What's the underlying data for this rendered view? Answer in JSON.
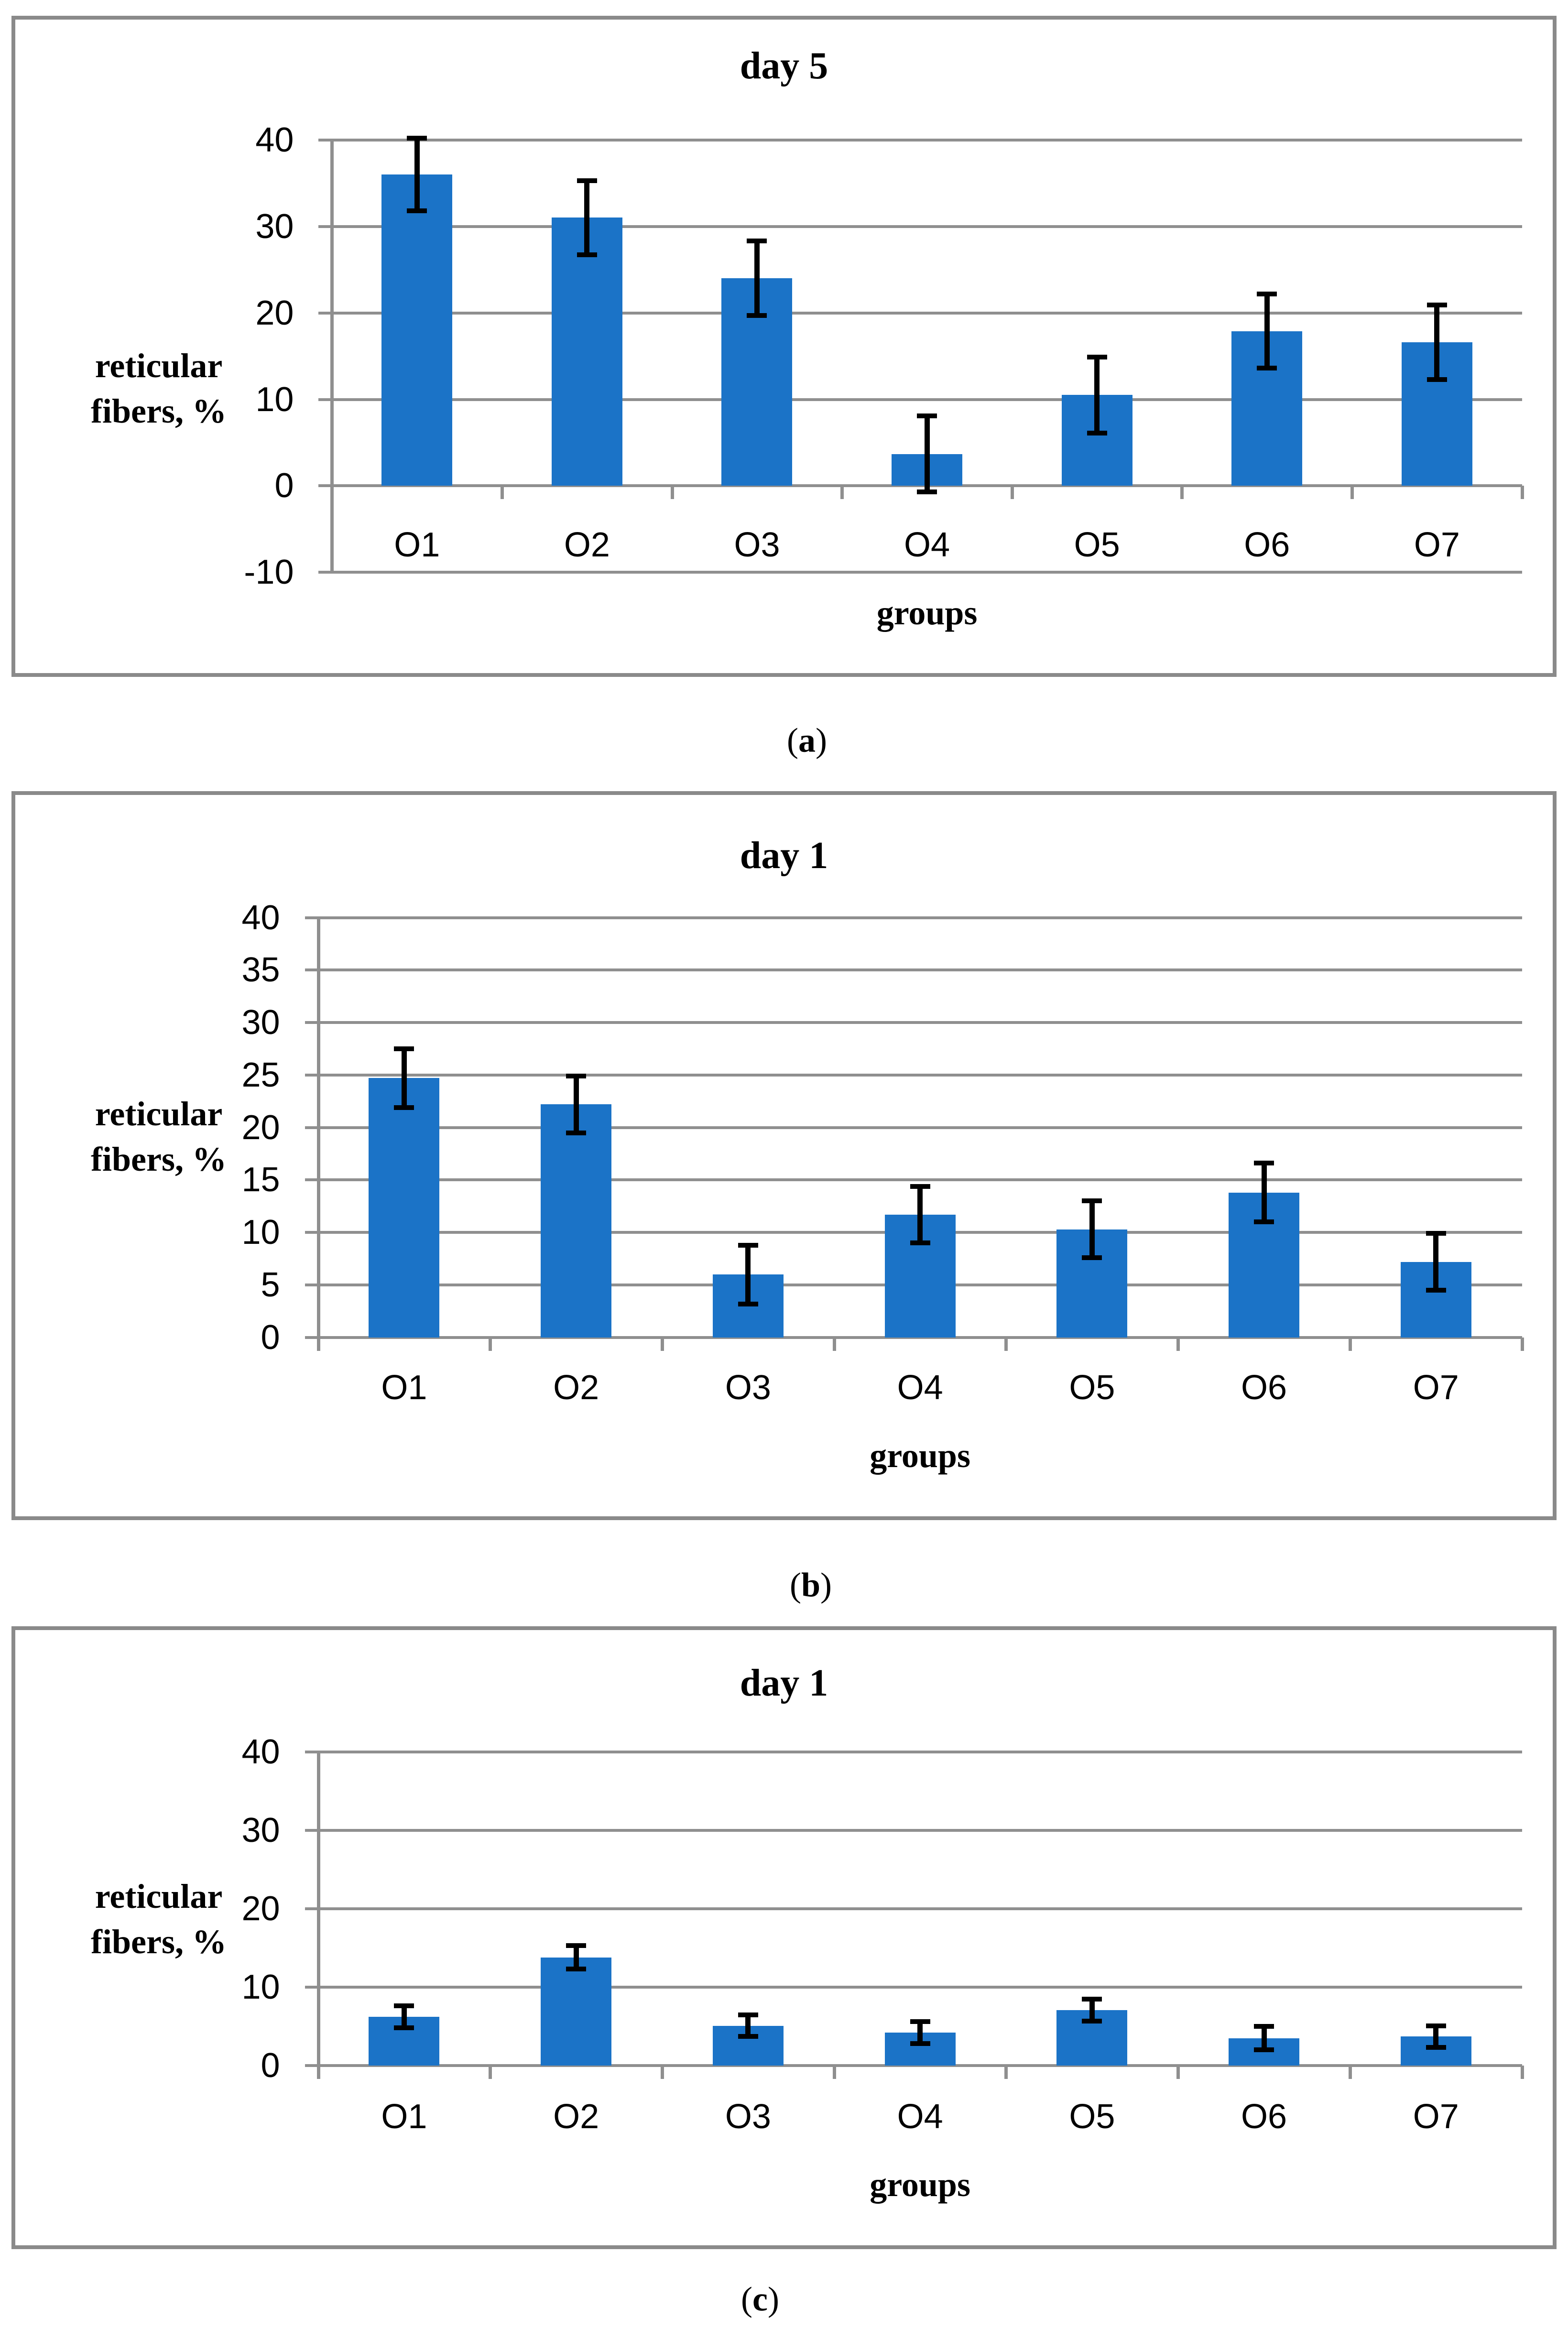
{
  "page": {
    "background": "#FFFFFF"
  },
  "style": {
    "bar_color": "#1B73C7",
    "grid_color": "#8F8F8F",
    "axis_color": "#8F8F8F",
    "panel_border_color": "#8A8A8A",
    "error_bar_color": "#000000",
    "text_color": "#000000"
  },
  "captions": [
    {
      "open": "(",
      "letter": "a",
      "close": ")"
    },
    {
      "open": "(",
      "letter": "b",
      "close": ")"
    },
    {
      "open": "(",
      "letter": "c",
      "close": ")"
    }
  ],
  "chart_data": [
    {
      "type": "bar",
      "panel": "a",
      "title": "day 5",
      "xlabel": "groups",
      "ylabel": "reticular fibers, %",
      "ylabel_lines": [
        "reticular",
        "fibers, %"
      ],
      "categories": [
        "O1",
        "O2",
        "O3",
        "O4",
        "O5",
        "O6",
        "O7"
      ],
      "values": [
        36,
        31,
        24,
        3.7,
        10.5,
        17.9,
        16.6
      ],
      "errors": [
        4.2,
        4.3,
        4.3,
        4.4,
        4.4,
        4.3,
        4.3
      ],
      "ylim": [
        -10,
        40
      ],
      "ytick_step": 10,
      "grid": true,
      "legend": "none"
    },
    {
      "type": "bar",
      "panel": "b",
      "title": "day 1",
      "xlabel": "groups",
      "ylabel": "reticular fibers, %",
      "ylabel_lines": [
        "reticular",
        "fibers, %"
      ],
      "categories": [
        "O1",
        "O2",
        "O3",
        "O4",
        "O5",
        "O6",
        "O7"
      ],
      "values": [
        24.7,
        22.2,
        6.0,
        11.7,
        10.3,
        13.8,
        7.2
      ],
      "errors": [
        2.8,
        2.7,
        2.8,
        2.7,
        2.7,
        2.8,
        2.7
      ],
      "ylim": [
        0,
        40
      ],
      "ytick_step": 5,
      "grid": true,
      "legend": "none"
    },
    {
      "type": "bar",
      "panel": "c",
      "title": "day 1",
      "xlabel": "groups",
      "ylabel": "reticular fibers, %",
      "ylabel_lines": [
        "reticular",
        "fibers, %"
      ],
      "categories": [
        "O1",
        "O2",
        "O3",
        "O4",
        "O5",
        "O6",
        "O7"
      ],
      "values": [
        6.2,
        13.8,
        5.1,
        4.2,
        7.1,
        3.5,
        3.7
      ],
      "errors": [
        1.4,
        1.5,
        1.4,
        1.4,
        1.4,
        1.5,
        1.4
      ],
      "ylim": [
        0,
        40
      ],
      "ytick_step": 10,
      "grid": true,
      "legend": "none"
    }
  ]
}
